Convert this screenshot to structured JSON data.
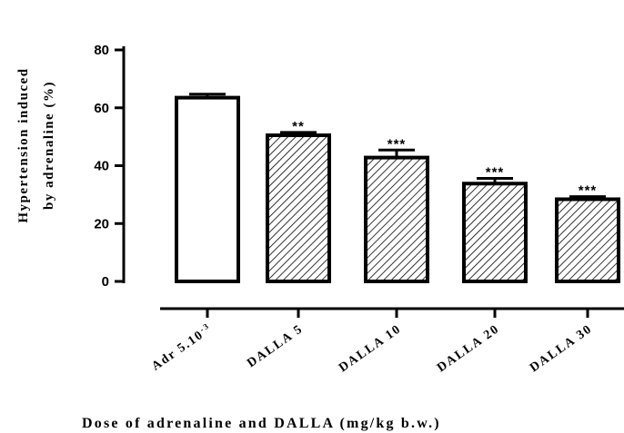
{
  "chart_data": {
    "type": "bar",
    "categories": [
      "Adr 5.10-3",
      "DALLA 5",
      "DALLA 10",
      "DALLA 20",
      "DALLA 30"
    ],
    "category_parts": [
      {
        "base": "Adr 5.10",
        "sup": "-3"
      },
      {
        "base": "DALLA 5",
        "sup": ""
      },
      {
        "base": "DALLA 10",
        "sup": ""
      },
      {
        "base": "DALLA 20",
        "sup": ""
      },
      {
        "base": "DALLA 30",
        "sup": ""
      }
    ],
    "values": [
      63.5,
      50.5,
      42.8,
      33.8,
      28.4
    ],
    "errors": [
      1.2,
      1.0,
      2.6,
      1.8,
      0.9
    ],
    "significance": [
      "",
      "**",
      "***",
      "***",
      "***"
    ],
    "fill": [
      "white",
      "hatched",
      "hatched",
      "hatched",
      "hatched"
    ],
    "title": "",
    "ylabel_line1": "Hypertension induced",
    "ylabel_line2": "by adrenaline (%)",
    "xlabel": "Dose of adrenaline and DALLA (mg/kg b.w.)",
    "ylim": [
      0,
      80
    ],
    "yticks": [
      0,
      20,
      40,
      60,
      80
    ],
    "grid": false
  }
}
